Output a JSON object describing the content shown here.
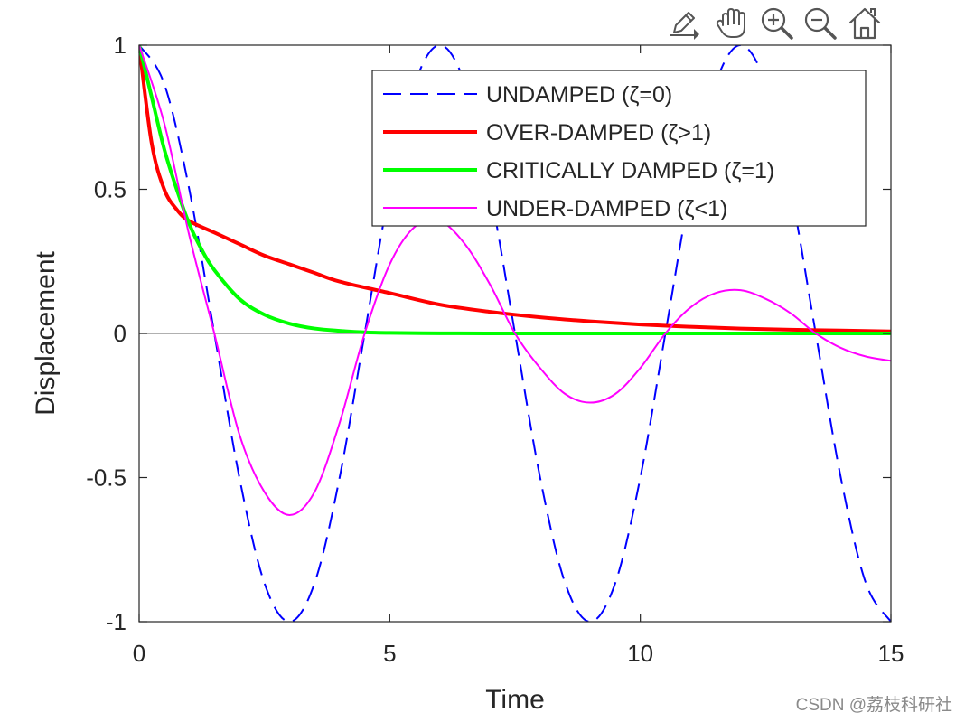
{
  "toolbar": {
    "tools": [
      {
        "name": "edit-plot-icon",
        "label": "Edit"
      },
      {
        "name": "pan-hand-icon",
        "label": "Pan"
      },
      {
        "name": "zoom-in-icon",
        "label": "Zoom In"
      },
      {
        "name": "zoom-out-icon",
        "label": "Zoom Out"
      },
      {
        "name": "home-icon",
        "label": "Restore View"
      }
    ]
  },
  "watermark": "CSDN @荔枝科研社",
  "colors": {
    "undamped": "#0000ff",
    "overdamped": "#ff0000",
    "critically": "#00ff00",
    "underdamped": "#ff00ff",
    "zero_line": "#808080",
    "axes": "#262626"
  },
  "chart_data": {
    "type": "line",
    "title": "",
    "xlabel": "Time",
    "ylabel": "Displacement",
    "xlim": [
      0,
      15
    ],
    "ylim": [
      -1,
      1
    ],
    "xticks": [
      0,
      5,
      10,
      15
    ],
    "xtick_labels": [
      "0",
      "5",
      "10",
      "15"
    ],
    "yticks": [
      -1,
      -0.5,
      0,
      0.5,
      1
    ],
    "ytick_labels": [
      "-1",
      "-0.5",
      "0",
      "0.5",
      "1"
    ],
    "grid": false,
    "legend_position": "top-right",
    "reference_line": {
      "y": 0,
      "label": "zero line"
    },
    "series": [
      {
        "name": "UNDAMPED (ζ=0)",
        "style": "dashed",
        "color_key": "undamped",
        "x": [
          0,
          0.5,
          1,
          1.5,
          2,
          2.5,
          3,
          3.5,
          4,
          4.5,
          5,
          5.5,
          6,
          6.5,
          7,
          7.5,
          8,
          8.5,
          9,
          9.5,
          10,
          10.5,
          11,
          11.5,
          12,
          12.5,
          13,
          13.5,
          14,
          14.5,
          15
        ],
        "y": [
          1,
          0.866,
          0.5,
          0,
          -0.5,
          -0.866,
          -1,
          -0.866,
          -0.5,
          0,
          0.5,
          0.866,
          1,
          0.866,
          0.5,
          0,
          -0.5,
          -0.866,
          -1,
          -0.866,
          -0.5,
          0,
          0.5,
          0.866,
          1,
          0.866,
          0.5,
          0,
          -0.5,
          -0.866,
          -1
        ]
      },
      {
        "name": "OVER-DAMPED (ζ>1)",
        "style": "solid-thick",
        "color_key": "overdamped",
        "x": [
          0,
          0.25,
          0.5,
          0.75,
          1,
          1.5,
          2,
          2.5,
          3,
          3.5,
          4,
          5,
          6,
          7,
          8,
          9,
          10,
          11,
          12,
          13,
          14,
          15
        ],
        "y": [
          1,
          0.66,
          0.5,
          0.43,
          0.39,
          0.35,
          0.31,
          0.27,
          0.24,
          0.21,
          0.18,
          0.14,
          0.1,
          0.075,
          0.056,
          0.042,
          0.031,
          0.023,
          0.017,
          0.013,
          0.01,
          0.007
        ]
      },
      {
        "name": "CRITICALLY DAMPED (ζ=1)",
        "style": "solid-thick",
        "color_key": "critically",
        "x": [
          0,
          0.25,
          0.5,
          0.75,
          1,
          1.25,
          1.5,
          2,
          2.5,
          3,
          3.5,
          4,
          4.5,
          5,
          6,
          7,
          8,
          9,
          10,
          11,
          12,
          13,
          14,
          15
        ],
        "y": [
          1,
          0.82,
          0.64,
          0.5,
          0.38,
          0.29,
          0.22,
          0.12,
          0.065,
          0.034,
          0.017,
          0.009,
          0.004,
          0.002,
          0.0005,
          0.0001,
          0,
          0,
          0,
          0,
          0,
          0,
          0,
          0
        ]
      },
      {
        "name": "UNDER-DAMPED (ζ<1)",
        "style": "solid-thin",
        "color_key": "underdamped",
        "x": [
          0,
          0.5,
          1,
          1.5,
          2,
          2.5,
          3,
          3.5,
          4,
          4.5,
          5,
          5.5,
          6,
          6.5,
          7,
          7.5,
          8,
          8.5,
          9,
          9.5,
          10,
          10.5,
          11,
          11.5,
          12,
          12.5,
          13,
          13.5,
          14,
          14.5,
          15
        ],
        "y": [
          1,
          0.73,
          0.34,
          0,
          -0.35,
          -0.55,
          -0.63,
          -0.55,
          -0.31,
          0,
          0.24,
          0.37,
          0.39,
          0.31,
          0.17,
          0,
          -0.12,
          -0.21,
          -0.24,
          -0.21,
          -0.12,
          0,
          0.09,
          0.14,
          0.15,
          0.12,
          0.07,
          0,
          -0.05,
          -0.08,
          -0.095
        ]
      }
    ]
  }
}
